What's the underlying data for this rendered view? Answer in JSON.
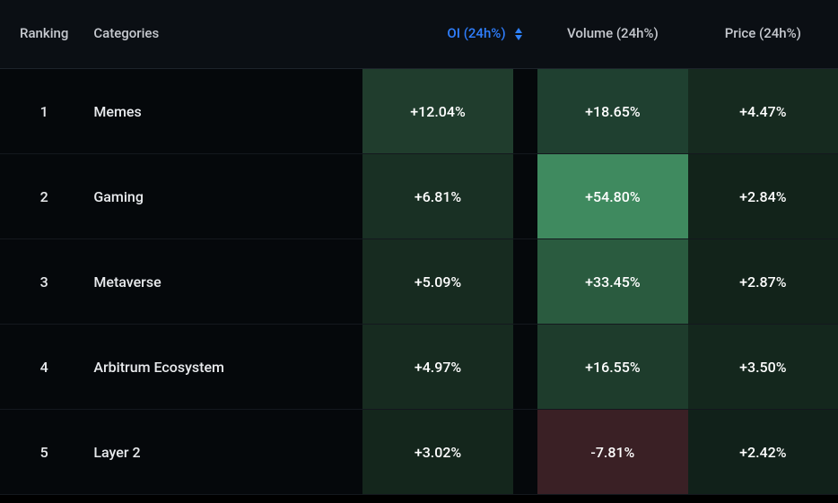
{
  "table": {
    "type": "table-heatmap",
    "columns": {
      "ranking": "Ranking",
      "categories": "Categories",
      "oi": "OI (24h%)",
      "volume": "Volume (24h%)",
      "price": "Price (24h%)"
    },
    "sort_column": "oi",
    "sort_direction": "desc",
    "colors": {
      "header_bg": "#0b0f14",
      "page_bg": "#000000",
      "row_bg": "#05080b",
      "text": "#e8eaed",
      "header_text": "#c6c9cf",
      "active_header": "#2f7fff",
      "border": "#14181e",
      "sort_arrow": "#2f81f7"
    },
    "heat_font_color": "#ffffff",
    "rows": [
      {
        "rank": "1",
        "category": "Memes",
        "oi": {
          "text": "+12.04%",
          "bg": "#203d2d"
        },
        "volume": {
          "text": "+18.65%",
          "bg": "#1f4030"
        },
        "price": {
          "text": "+4.47%",
          "bg": "#162a1f"
        }
      },
      {
        "rank": "2",
        "category": "Gaming",
        "oi": {
          "text": "+6.81%",
          "bg": "#193024"
        },
        "volume": {
          "text": "+54.80%",
          "bg": "#3f8a5f"
        },
        "price": {
          "text": "+2.84%",
          "bg": "#12231a"
        }
      },
      {
        "rank": "3",
        "category": "Metaverse",
        "oi": {
          "text": "+5.09%",
          "bg": "#172b20"
        },
        "volume": {
          "text": "+33.45%",
          "bg": "#2a5b3f"
        },
        "price": {
          "text": "+2.87%",
          "bg": "#12231a"
        }
      },
      {
        "rank": "4",
        "category": "Arbitrum Ecosystem",
        "oi": {
          "text": "+4.97%",
          "bg": "#172b20"
        },
        "volume": {
          "text": "+16.55%",
          "bg": "#1e3c2c"
        },
        "price": {
          "text": "+3.50%",
          "bg": "#14271d"
        }
      },
      {
        "rank": "5",
        "category": "Layer 2",
        "oi": {
          "text": "+3.02%",
          "bg": "#14261c"
        },
        "volume": {
          "text": "-7.81%",
          "bg": "#3a2025"
        },
        "price": {
          "text": "+2.42%",
          "bg": "#11211a"
        }
      }
    ]
  }
}
